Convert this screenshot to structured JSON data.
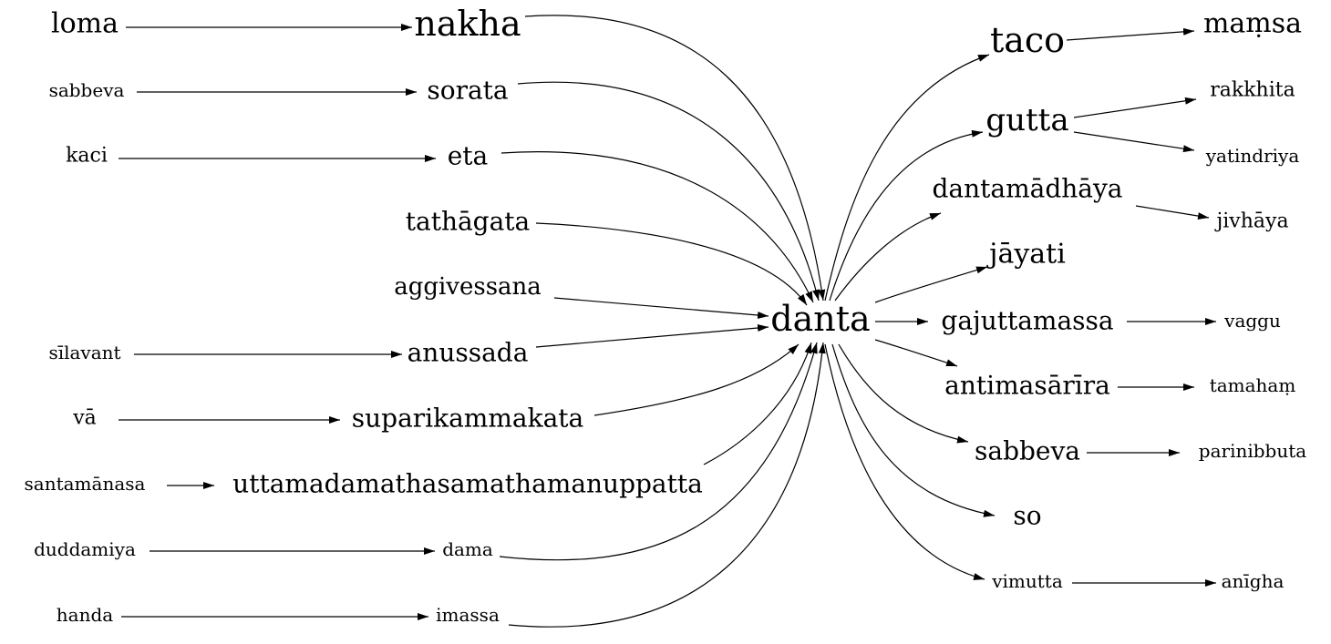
{
  "graph": {
    "center": "danta",
    "incoming": [
      {
        "from": "loma",
        "to": "nakha"
      },
      {
        "from": "sabbeva",
        "to": "sorata"
      },
      {
        "from": "kaci",
        "to": "eta"
      },
      {
        "from": null,
        "to": "tathāgata"
      },
      {
        "from": null,
        "to": "aggivessana"
      },
      {
        "from": "sīlavant",
        "to": "anussada"
      },
      {
        "from": "vā",
        "to": "suparikammakata"
      },
      {
        "from": "santamānasa",
        "to": "uttamadamathasamathamanuppatta"
      },
      {
        "from": "duddamiya",
        "to": "dama"
      },
      {
        "from": "handa",
        "to": "imassa"
      }
    ],
    "outgoing": [
      {
        "node": "taco",
        "next": [
          "maṃsa"
        ]
      },
      {
        "node": "gutta",
        "next": [
          "rakkhita",
          "yatindriya"
        ]
      },
      {
        "node": "dantamādhāya",
        "next": [
          "jivhāya"
        ]
      },
      {
        "node": "jāyati",
        "next": []
      },
      {
        "node": "gajuttamassa",
        "next": [
          "vaggu"
        ]
      },
      {
        "node": "antimasārīra",
        "next": [
          "tamahaṃ"
        ]
      },
      {
        "node": "sabbeva",
        "next": [
          "parinibbuta"
        ]
      },
      {
        "node": "so",
        "next": []
      },
      {
        "node": "vimutta",
        "next": [
          "anīgha"
        ]
      }
    ]
  }
}
